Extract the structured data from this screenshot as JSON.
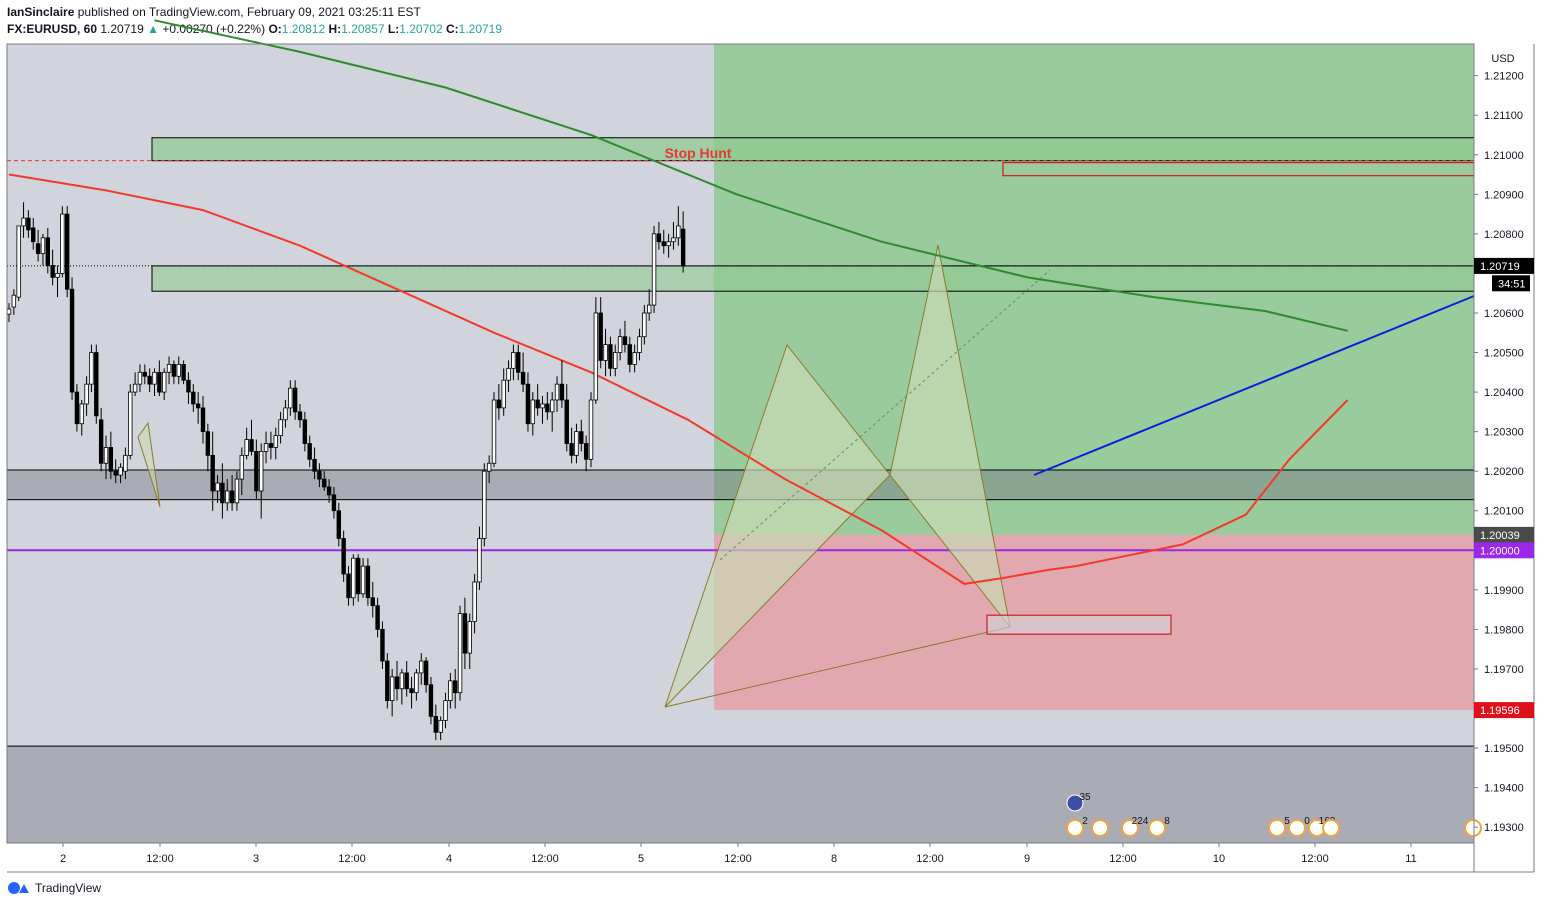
{
  "header": {
    "author": "IanSinclaire",
    "published_text": "published on TradingView.com, February 09, 2021 03:25:11 EST",
    "symbol": "FX:EURUSD, 60",
    "last": "1.20719",
    "change": "+0.00270 (+0.22%)",
    "open_label": "O:",
    "open": "1.20812",
    "high_label": "H:",
    "high": "1.20857",
    "low_label": "L:",
    "low": "1.20702",
    "close_label": "C:",
    "close": "1.20719"
  },
  "footer": {
    "brand": "TradingView"
  },
  "colors": {
    "up_candle": "#ffffff",
    "down_candle": "#000000",
    "ema_red": "#f23a2b",
    "ma_green": "#2e8b2e",
    "trend_blue": "#0a22d6",
    "level_purple": "#9c27e6",
    "target_zone": "#7bc67b",
    "stop_zone": "#e79aa2",
    "pattern_fill": "#c9d9b4"
  },
  "chart_data": {
    "type": "candlestick",
    "currency_label": "USD",
    "ylim": [
      1.1926,
      1.2128
    ],
    "y_ticks": [
      "1.21200",
      "1.21100",
      "1.21000",
      "1.20900",
      "1.20800",
      "1.20600",
      "1.20500",
      "1.20400",
      "1.20300",
      "1.20200",
      "1.20100",
      "1.19900",
      "1.19800",
      "1.19700",
      "1.19500",
      "1.19400",
      "1.19300"
    ],
    "x_ticks": [
      "2",
      "12:00",
      "3",
      "12:00",
      "4",
      "12:00",
      "5",
      "12:00",
      "8",
      "12:00",
      "9",
      "12:00",
      "10",
      "12:00",
      "11"
    ],
    "price_labels": [
      {
        "text": "1.20719",
        "value": 1.20719,
        "bg": "#000000"
      },
      {
        "text": "34:51",
        "value": 1.20675,
        "bg": "#000000"
      },
      {
        "text": "1.20039",
        "value": 1.20039,
        "bg": "#4a4a4a"
      },
      {
        "text": "1.20000",
        "value": 1.2,
        "bg": "#9c27e6"
      },
      {
        "text": "1.19596",
        "value": 1.19596,
        "bg": "#e0101a"
      }
    ],
    "annotations": [
      {
        "text": "Stop Hunt",
        "value": 1.2013
      }
    ],
    "zones": {
      "upper_supply": [
        1.21043,
        1.20985
      ],
      "mid_zone": [
        1.20719,
        1.20655
      ],
      "gray_zone": [
        1.20203,
        1.20128
      ],
      "bottom_zone": [
        1.19505,
        1.19265
      ],
      "target": [
        1.2128,
        1.20039
      ],
      "stop": [
        1.20039,
        1.19596
      ],
      "small_red_box": [
        1.2098,
        1.20947
      ],
      "prz_box": [
        1.19836,
        1.19788
      ]
    },
    "levels": {
      "red_dashed": 1.20985,
      "purple": 1.2
    },
    "candles_ohlc": [
      [
        1.20597,
        1.20625,
        1.20577,
        1.2061
      ],
      [
        1.20615,
        1.2066,
        1.20595,
        1.20645
      ],
      [
        1.2064,
        1.2072,
        1.2063,
        1.2082
      ],
      [
        1.2082,
        1.2088,
        1.2079,
        1.2084
      ],
      [
        1.2084,
        1.2086,
        1.2079,
        1.2081
      ],
      [
        1.20815,
        1.2084,
        1.2076,
        1.2078
      ],
      [
        1.20775,
        1.2081,
        1.2073,
        1.2075
      ],
      [
        1.2075,
        1.208,
        1.2072,
        1.2079
      ],
      [
        1.2079,
        1.20815,
        1.207,
        1.2072
      ],
      [
        1.2072,
        1.2076,
        1.2067,
        1.2069
      ],
      [
        1.2069,
        1.2072,
        1.2064,
        1.207
      ],
      [
        1.207,
        1.2087,
        1.2069,
        1.2085
      ],
      [
        1.2085,
        1.2087,
        1.2064,
        1.2066
      ],
      [
        1.2066,
        1.2069,
        1.2038,
        1.204
      ],
      [
        1.204,
        1.2042,
        1.203,
        1.2032
      ],
      [
        1.2032,
        1.2038,
        1.2029,
        1.2037
      ],
      [
        1.2037,
        1.2044,
        1.2034,
        1.2042
      ],
      [
        1.2042,
        1.2052,
        1.204,
        1.205
      ],
      [
        1.205,
        1.2052,
        1.2032,
        1.2034
      ],
      [
        1.2033,
        1.2036,
        1.202,
        1.2022
      ],
      [
        1.2022,
        1.2029,
        1.2018,
        1.2026
      ],
      [
        1.2026,
        1.203,
        1.2018,
        1.202
      ],
      [
        1.202,
        1.2023,
        1.2017,
        1.2019
      ],
      [
        1.2019,
        1.2022,
        1.2017,
        1.2021
      ],
      [
        1.202,
        1.2026,
        1.2018,
        1.2024
      ],
      [
        1.2024,
        1.2042,
        1.2023,
        1.204
      ],
      [
        1.204,
        1.2045,
        1.2039,
        1.2042
      ],
      [
        1.2042,
        1.2047,
        1.204,
        1.2045
      ],
      [
        1.2045,
        1.2047,
        1.2042,
        1.2044
      ],
      [
        1.2044,
        1.2046,
        1.204,
        1.2042
      ],
      [
        1.2042,
        1.2046,
        1.2039,
        1.2045
      ],
      [
        1.2045,
        1.2048,
        1.2039,
        1.204
      ],
      [
        1.204,
        1.2046,
        1.2038,
        1.2045
      ],
      [
        1.2045,
        1.2049,
        1.2042,
        1.2047
      ],
      [
        1.2047,
        1.2048,
        1.2042,
        1.2044
      ],
      [
        1.2044,
        1.2049,
        1.2042,
        1.2047
      ],
      [
        1.2047,
        1.2048,
        1.2042,
        1.2043
      ],
      [
        1.2043,
        1.2045,
        1.2037,
        1.204
      ],
      [
        1.204,
        1.2042,
        1.2035,
        1.2037
      ],
      [
        1.2037,
        1.204,
        1.2032,
        1.2036
      ],
      [
        1.2036,
        1.2039,
        1.2027,
        1.203
      ],
      [
        1.203,
        1.2032,
        1.202,
        1.2024
      ],
      [
        1.2024,
        1.203,
        1.201,
        1.2015
      ],
      [
        1.2015,
        1.2019,
        1.2012,
        1.2017
      ],
      [
        1.2017,
        1.2022,
        1.2008,
        1.2012
      ],
      [
        1.2012,
        1.2018,
        1.201,
        1.2015
      ],
      [
        1.2015,
        1.2019,
        1.201,
        1.2012
      ],
      [
        1.2012,
        1.202,
        1.201,
        1.2018
      ],
      [
        1.2018,
        1.2026,
        1.2014,
        1.2024
      ],
      [
        1.2024,
        1.2031,
        1.2023,
        1.2028
      ],
      [
        1.2028,
        1.2033,
        1.2024,
        1.2025
      ],
      [
        1.2025,
        1.2028,
        1.2013,
        1.2015
      ],
      [
        1.2015,
        1.2027,
        1.2008,
        1.2025
      ],
      [
        1.2025,
        1.203,
        1.2022,
        1.2027
      ],
      [
        1.2027,
        1.203,
        1.2023,
        1.2026
      ],
      [
        1.2026,
        1.2031,
        1.2023,
        1.2029
      ],
      [
        1.2029,
        1.2035,
        1.2027,
        1.2033
      ],
      [
        1.2033,
        1.2038,
        1.2031,
        1.2036
      ],
      [
        1.2036,
        1.2043,
        1.2034,
        1.2041
      ],
      [
        1.2041,
        1.2043,
        1.2033,
        1.2035
      ],
      [
        1.2035,
        1.2037,
        1.2031,
        1.2033
      ],
      [
        1.2033,
        1.2035,
        1.2025,
        1.2027
      ],
      [
        1.2027,
        1.2029,
        1.2021,
        1.2023
      ],
      [
        1.2023,
        1.2026,
        1.2018,
        1.202
      ],
      [
        1.202,
        1.2022,
        1.2016,
        1.2018
      ],
      [
        1.2018,
        1.202,
        1.2015,
        1.2016
      ],
      [
        1.2016,
        1.2018,
        1.2012,
        1.2014
      ],
      [
        1.2014,
        1.2016,
        1.2008,
        1.201
      ],
      [
        1.201,
        1.2012,
        1.2001,
        1.2003
      ],
      [
        1.2003,
        1.2005,
        1.1992,
        1.1994
      ],
      [
        1.1994,
        1.1996,
        1.1986,
        1.1988
      ],
      [
        1.1988,
        1.1999,
        1.1986,
        1.1998
      ],
      [
        1.1998,
        1.1999,
        1.1987,
        1.1989
      ],
      [
        1.1989,
        1.1998,
        1.1988,
        1.1996
      ],
      [
        1.1996,
        1.1998,
        1.1986,
        1.1988
      ],
      [
        1.1988,
        1.1992,
        1.1983,
        1.1986
      ],
      [
        1.1986,
        1.1988,
        1.1978,
        1.198
      ],
      [
        1.198,
        1.1982,
        1.197,
        1.1972
      ],
      [
        1.1972,
        1.1974,
        1.196,
        1.1962
      ],
      [
        1.1962,
        1.197,
        1.1958,
        1.1968
      ],
      [
        1.1968,
        1.1972,
        1.1962,
        1.1965
      ],
      [
        1.1965,
        1.197,
        1.1961,
        1.1969
      ],
      [
        1.1969,
        1.1972,
        1.1963,
        1.1965
      ],
      [
        1.1965,
        1.1968,
        1.196,
        1.1964
      ],
      [
        1.1964,
        1.197,
        1.1962,
        1.1969
      ],
      [
        1.1969,
        1.1974,
        1.1966,
        1.1972
      ],
      [
        1.1972,
        1.1973,
        1.1964,
        1.1966
      ],
      [
        1.1966,
        1.1968,
        1.1956,
        1.1958
      ],
      [
        1.1958,
        1.1961,
        1.1952,
        1.1954
      ],
      [
        1.1954,
        1.1958,
        1.1952,
        1.1957
      ],
      [
        1.1957,
        1.1964,
        1.1955,
        1.1962
      ],
      [
        1.1962,
        1.1969,
        1.196,
        1.1967
      ],
      [
        1.1967,
        1.197,
        1.196,
        1.1964
      ],
      [
        1.1964,
        1.1986,
        1.1962,
        1.1984
      ],
      [
        1.1984,
        1.1988,
        1.197,
        1.1974
      ],
      [
        1.1974,
        1.1984,
        1.197,
        1.1982
      ],
      [
        1.1982,
        1.1994,
        1.1979,
        1.1992
      ],
      [
        1.1992,
        1.2006,
        1.199,
        1.2003
      ],
      [
        1.2003,
        1.2022,
        1.2001,
        1.202
      ],
      [
        1.202,
        1.2024,
        1.2017,
        1.2022
      ],
      [
        1.2022,
        1.204,
        1.2021,
        1.2038
      ],
      [
        1.2038,
        1.2042,
        1.2033,
        1.2036
      ],
      [
        1.2036,
        1.2046,
        1.2034,
        1.2043
      ],
      [
        1.2043,
        1.2048,
        1.204,
        1.2046
      ],
      [
        1.2046,
        1.2052,
        1.2043,
        1.205
      ],
      [
        1.205,
        1.2052,
        1.2043,
        1.2045
      ],
      [
        1.2045,
        1.205,
        1.204,
        1.2042
      ],
      [
        1.2042,
        1.2045,
        1.203,
        1.2032
      ],
      [
        1.2032,
        1.204,
        1.2029,
        1.2038
      ],
      [
        1.2038,
        1.2042,
        1.2034,
        1.2036
      ],
      [
        1.2036,
        1.2039,
        1.2032,
        1.2037
      ],
      [
        1.2037,
        1.204,
        1.2033,
        1.2035
      ],
      [
        1.2035,
        1.204,
        1.203,
        1.2038
      ],
      [
        1.2038,
        1.2044,
        1.2035,
        1.2042
      ],
      [
        1.2042,
        1.2048,
        1.2036,
        1.2038
      ],
      [
        1.2038,
        1.2042,
        1.2025,
        1.2027
      ],
      [
        1.2027,
        1.2031,
        1.2022,
        1.2024
      ],
      [
        1.2024,
        1.2032,
        1.2022,
        1.203
      ],
      [
        1.203,
        1.2033,
        1.2025,
        1.2027
      ],
      [
        1.2027,
        1.2029,
        1.202,
        1.2023
      ],
      [
        1.2023,
        1.204,
        1.2021,
        1.2038
      ],
      [
        1.2038,
        1.2064,
        1.2037,
        1.206
      ],
      [
        1.206,
        1.2064,
        1.2046,
        1.2048
      ],
      [
        1.2048,
        1.2056,
        1.2044,
        1.2052
      ],
      [
        1.2052,
        1.2054,
        1.2044,
        1.2046
      ],
      [
        1.2046,
        1.2052,
        1.2044,
        1.205
      ],
      [
        1.205,
        1.2056,
        1.2048,
        1.2054
      ],
      [
        1.2054,
        1.2058,
        1.205,
        1.2052
      ],
      [
        1.2052,
        1.2054,
        1.2045,
        1.2047
      ],
      [
        1.2047,
        1.2052,
        1.2045,
        1.205
      ],
      [
        1.205,
        1.2056,
        1.2048,
        1.2054
      ],
      [
        1.2054,
        1.2062,
        1.2052,
        1.206
      ],
      [
        1.206,
        1.2066,
        1.2058,
        1.2062
      ],
      [
        1.2062,
        1.2082,
        1.206,
        1.208
      ],
      [
        1.208,
        1.2083,
        1.2076,
        1.2078
      ],
      [
        1.2078,
        1.2081,
        1.2075,
        1.2077
      ],
      [
        1.2077,
        1.208,
        1.2074,
        1.2078
      ],
      [
        1.2078,
        1.2083,
        1.2076,
        1.2079
      ],
      [
        1.2079,
        1.2087,
        1.2077,
        1.2082
      ],
      [
        1.20812,
        1.20857,
        1.20702,
        1.20719
      ]
    ],
    "series": [
      {
        "name": "",
        "values": [
          [
            0,
            1.2095
          ],
          [
            20,
            1.2091
          ],
          [
            40,
            1.2086
          ],
          [
            60,
            1.2077
          ],
          [
            80,
            1.2066
          ],
          [
            100,
            1.2055
          ],
          [
            120,
            1.2045
          ],
          [
            140,
            1.2033
          ],
          [
            160,
            1.2018
          ],
          [
            180,
            1.2005
          ],
          [
            197,
            1.19915
          ],
          [
            205,
            1.1993
          ],
          [
            214,
            1.1995
          ],
          [
            220,
            1.1996
          ],
          [
            228,
            1.1998
          ],
          [
            242,
            1.20015
          ],
          [
            255,
            1.2009
          ],
          [
            264,
            1.2023
          ],
          [
            276,
            1.2038
          ]
        ]
      },
      {
        "name": "",
        "values": [
          [
            30,
            1.2134
          ],
          [
            60,
            1.2126
          ],
          [
            90,
            1.2117
          ],
          [
            120,
            1.2105
          ],
          [
            150,
            1.209
          ],
          [
            180,
            1.2078
          ],
          [
            210,
            1.2069
          ],
          [
            236,
            1.2064
          ],
          [
            259,
            1.20605
          ],
          [
            276,
            1.20555
          ]
        ]
      }
    ]
  }
}
